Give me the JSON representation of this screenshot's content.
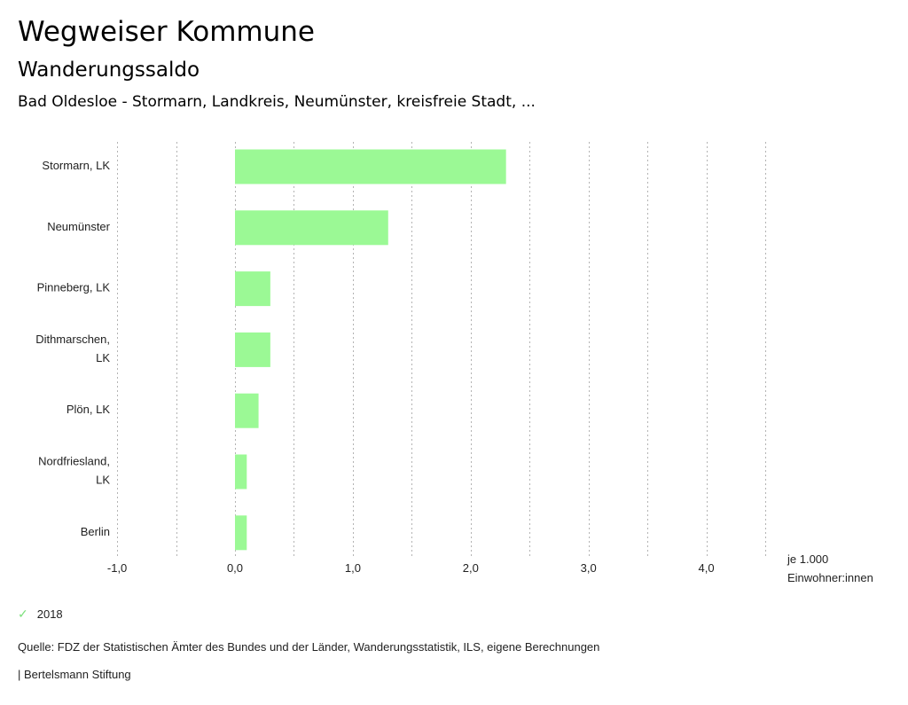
{
  "header": {
    "title": "Wegweiser Kommune",
    "subtitle": "Wanderungssaldo",
    "region": "Bad Oldesloe - Stormarn, Landkreis, Neumünster, kreisfreie Stadt, ..."
  },
  "legend": {
    "icon": "check-icon",
    "label": "2018"
  },
  "source": "Quelle: FDZ der Statistischen Ämter des Bundes und der Länder, Wanderungsstatistik, ILS, eigene Berechnungen",
  "footer": "| Bertelsmann Stiftung",
  "chart_data": {
    "type": "bar",
    "orientation": "horizontal",
    "title": "Wanderungssaldo",
    "categories": [
      [
        "Stormarn, LK"
      ],
      [
        "Neumünster"
      ],
      [
        "Pinneberg, LK"
      ],
      [
        "Dithmarschen,",
        "LK"
      ],
      [
        "Plön, LK"
      ],
      [
        "Nordfriesland,",
        "LK"
      ],
      [
        "Berlin"
      ]
    ],
    "series": [
      {
        "name": "2018",
        "color": "#9bf995",
        "values": [
          2.3,
          1.3,
          0.3,
          0.3,
          0.2,
          0.1,
          0.1
        ]
      }
    ],
    "xlim": [
      -1.0,
      4.5
    ],
    "xticks": [
      -1.0,
      0.0,
      1.0,
      2.0,
      3.0,
      4.0
    ],
    "xtick_labels": [
      "-1,0",
      "0,0",
      "1,0",
      "2,0",
      "3,0",
      "4,0"
    ],
    "gridlines": [
      -1.0,
      -0.5,
      0.0,
      0.5,
      1.0,
      1.5,
      2.0,
      2.5,
      3.0,
      3.5,
      4.0,
      4.5
    ],
    "grid": true,
    "grid_style": "dotted",
    "grid_color": "#b3b3b3",
    "xlabel": [
      "je 1.000",
      "Einwohner:innen"
    ],
    "ylabel": "",
    "legend_position": "bottom-left"
  }
}
